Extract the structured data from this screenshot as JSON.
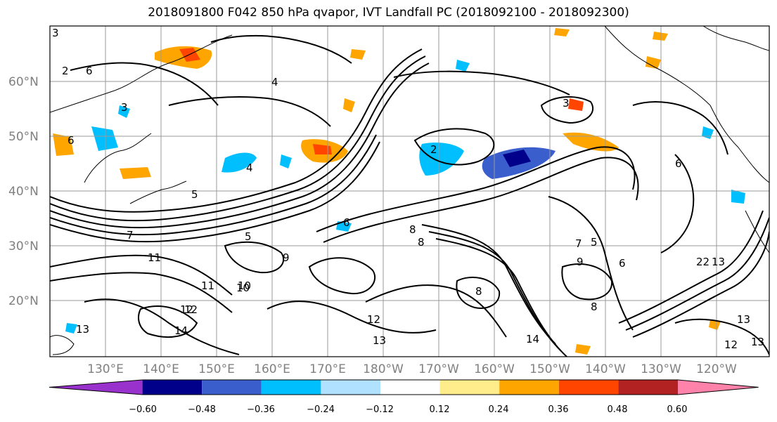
{
  "title": "2018091800 F042 850 hPa qvapor, IVT Landfall PC (2018092100 - 2018092300)",
  "lat_labels": [
    "60°N",
    "50°N",
    "40°N",
    "30°N",
    "20°N"
  ],
  "lon_labels": [
    "130°E",
    "140°E",
    "150°E",
    "160°E",
    "170°E",
    "180°W",
    "170°W",
    "160°W",
    "150°W",
    "140°W",
    "130°W",
    "120°W"
  ],
  "colorbar": {
    "colors": [
      "#9932cc",
      "#00008b",
      "#3a5fcd",
      "#00bfff",
      "#b0e2ff",
      "#ffffff",
      "#ffec8b",
      "#ffa500",
      "#ff4500",
      "#b22222",
      "#ff82ab"
    ],
    "tick_labels": [
      "−0.60",
      "−0.48",
      "−0.36",
      "−0.24",
      "−0.12",
      "0.12",
      "0.24",
      "0.36",
      "0.48",
      "0.60"
    ]
  },
  "contour_labels": [
    "3",
    "2",
    "6",
    "4",
    "3",
    "2",
    "3",
    "6",
    "5",
    "4",
    "6",
    "7",
    "5",
    "11",
    "10",
    "11",
    "12",
    "13",
    "14",
    "12",
    "13",
    "14",
    "13",
    "12",
    "13",
    "8",
    "9",
    "8",
    "6",
    "8",
    "9",
    "7",
    "6",
    "8",
    "5",
    "22",
    "13",
    "10",
    "12"
  ]
}
